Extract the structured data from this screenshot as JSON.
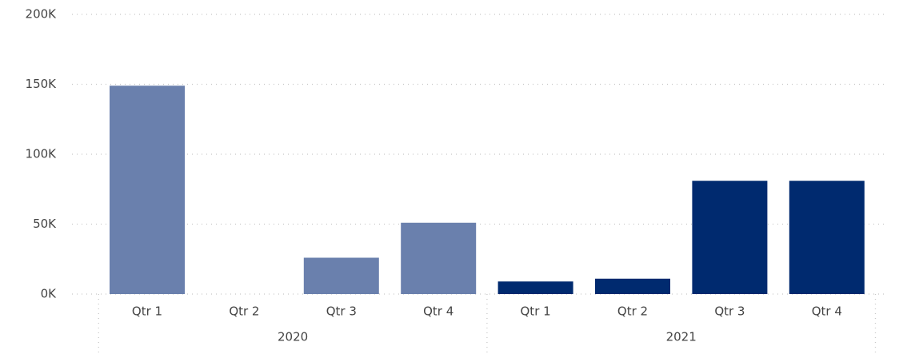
{
  "chart_data": {
    "type": "bar",
    "groups": [
      {
        "name": "2020",
        "color": "#6a80ad",
        "categories": [
          "Qtr 1",
          "Qtr 2",
          "Qtr 3",
          "Qtr 4"
        ],
        "values": [
          149000,
          0,
          26000,
          51000
        ]
      },
      {
        "name": "2021",
        "color": "#002a6f",
        "categories": [
          "Qtr 1",
          "Qtr 2",
          "Qtr 3",
          "Qtr 4"
        ],
        "values": [
          9000,
          11000,
          81000,
          81000
        ]
      }
    ],
    "ylim": [
      0,
      200000
    ],
    "yticks": [
      {
        "value": 0,
        "label": "0K"
      },
      {
        "value": 50000,
        "label": "50K"
      },
      {
        "value": 100000,
        "label": "100K"
      },
      {
        "value": 150000,
        "label": "150K"
      },
      {
        "value": 200000,
        "label": "200K"
      }
    ],
    "grid": true
  }
}
